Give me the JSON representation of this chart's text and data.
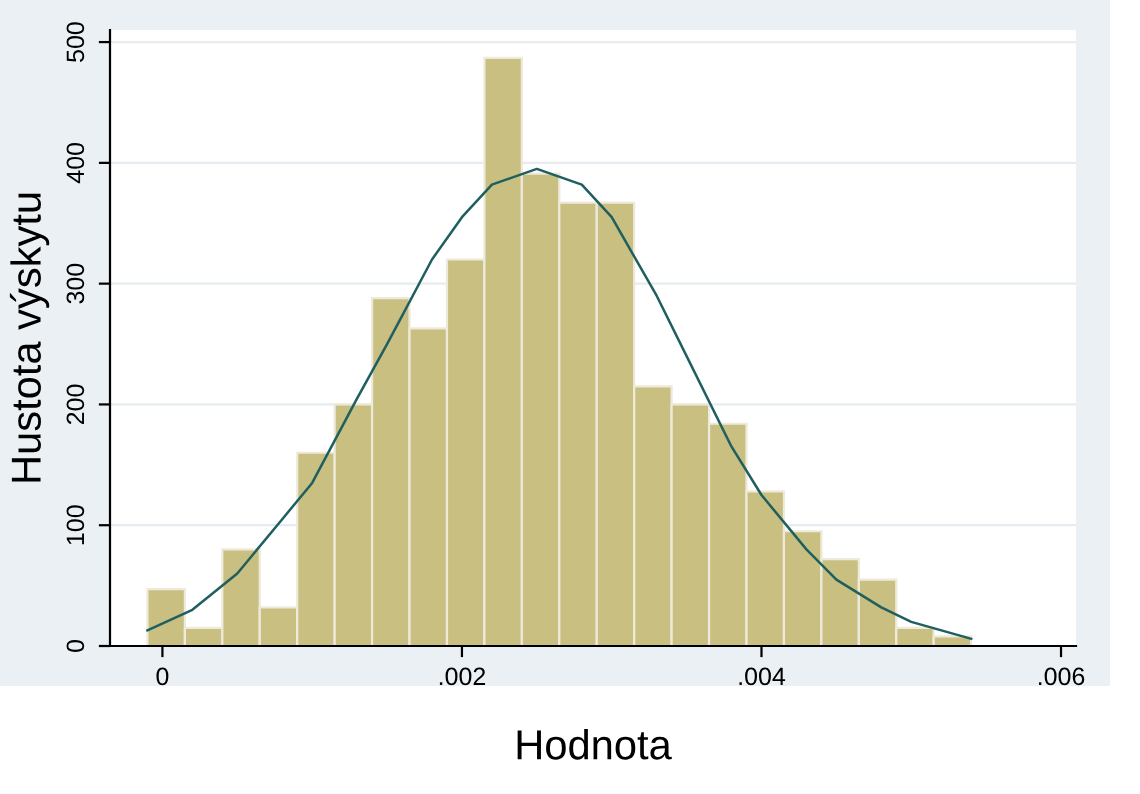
{
  "chart_data": {
    "type": "histogram",
    "xlabel": "Hodnota",
    "ylabel": "Hustota výskytu",
    "bins": [
      -0.0001,
      0.00015,
      0.0004,
      0.00065,
      0.0009,
      0.00115,
      0.0014,
      0.00165,
      0.0019,
      0.00215,
      0.0024,
      0.00265,
      0.0029,
      0.00315,
      0.0034,
      0.00365,
      0.0039,
      0.00415,
      0.0044,
      0.00465,
      0.0049,
      0.00515,
      0.0054
    ],
    "values": [
      47,
      15,
      80,
      32,
      160,
      200,
      288,
      263,
      320,
      487,
      391,
      367,
      367,
      215,
      200,
      184,
      128,
      95,
      72,
      55,
      15,
      8
    ],
    "color": "#c8bf80",
    "series": [
      {
        "type": "line",
        "color": "#1f5f60",
        "x": [
          -0.0001,
          0.0002,
          0.0005,
          0.0008,
          0.001,
          0.0013,
          0.0015,
          0.0018,
          0.002,
          0.0022,
          0.0025,
          0.0028,
          0.003,
          0.0033,
          0.0035,
          0.0038,
          0.004,
          0.0043,
          0.0045,
          0.0048,
          0.005,
          0.0054
        ],
        "values": [
          13,
          30,
          60,
          105,
          135,
          205,
          250,
          320,
          355,
          382,
          395,
          382,
          355,
          290,
          240,
          165,
          125,
          80,
          55,
          32,
          20,
          6
        ]
      }
    ],
    "xlim": [
      -0.00035,
      0.0061
    ],
    "ylim": [
      0,
      510
    ],
    "xticks": [
      0,
      {
        "value": 0.002,
        "label": ".002"
      },
      {
        "value": 0.004,
        "label": ".004"
      },
      {
        "value": 0.006,
        "label": ".006"
      }
    ],
    "yticks": [
      0,
      100,
      200,
      300,
      400,
      500
    ],
    "grid": "y",
    "legend": false
  }
}
